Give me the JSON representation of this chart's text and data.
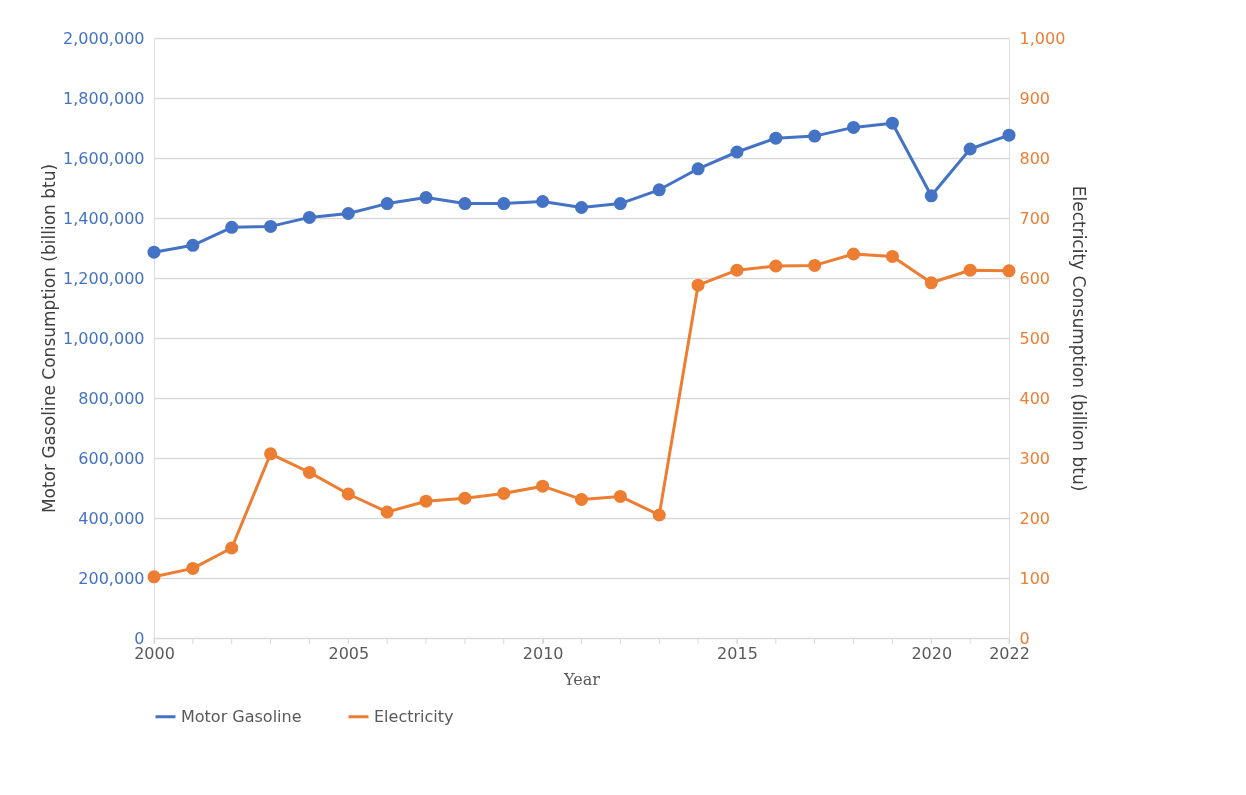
{
  "chart_data": {
    "type": "line",
    "xlabel": "Year",
    "ylabel": "Motor Gasoline Consumption (billion btu)",
    "y2label": "Electricity Consumption (billion btu)",
    "x": [
      2000,
      2001,
      2002,
      2003,
      2004,
      2005,
      2006,
      2007,
      2008,
      2009,
      2010,
      2011,
      2012,
      2013,
      2014,
      2015,
      2016,
      2017,
      2018,
      2019,
      2020,
      2021,
      2022
    ],
    "series": [
      {
        "name": "Motor Gasoline",
        "color": "#4472c4",
        "values": [
          1286000,
          1309000,
          1369000,
          1372000,
          1402000,
          1415000,
          1448000,
          1468000,
          1448000,
          1448000,
          1455000,
          1435000,
          1448000,
          1494000,
          1564000,
          1620000,
          1666000,
          1673000,
          1702000,
          1716000,
          1474000,
          1630000,
          1676000
        ]
      },
      {
        "name": "Electricity",
        "color": "#ed7d31",
        "axis": "y2",
        "values": [
          102,
          116,
          150,
          307,
          276,
          240,
          210,
          228,
          233,
          241,
          253,
          231,
          236,
          205,
          588,
          613,
          620,
          621,
          640,
          636,
          592,
          613,
          612
        ]
      }
    ],
    "xlim": [
      2000,
      2022
    ],
    "xticks": [
      2000,
      2005,
      2010,
      2015,
      2020,
      2022
    ],
    "ylim": [
      0,
      2000000
    ],
    "yticks": [
      0,
      {
        "value": 200000,
        "label": "200,000"
      },
      {
        "value": 400000,
        "label": "400,000"
      },
      {
        "value": 600000,
        "label": "600,000"
      },
      {
        "value": 800000,
        "label": "800,000"
      },
      {
        "value": 1000000,
        "label": "1,000,000"
      },
      {
        "value": 1200000,
        "label": "1,200,000"
      },
      {
        "value": 1400000,
        "label": "1,400,000"
      },
      {
        "value": 1600000,
        "label": "1,600,000"
      },
      {
        "value": 1800000,
        "label": "1,800,000"
      },
      {
        "value": 2000000,
        "label": "2,000,000"
      }
    ],
    "y2lim": [
      0,
      1000
    ],
    "y2ticks": [
      0,
      100,
      200,
      300,
      400,
      500,
      600,
      700,
      800,
      900,
      {
        "value": 1000,
        "label": "1,000"
      }
    ],
    "grid": "y",
    "legend": "bottom",
    "marker": "circle",
    "line_style": "solid"
  }
}
